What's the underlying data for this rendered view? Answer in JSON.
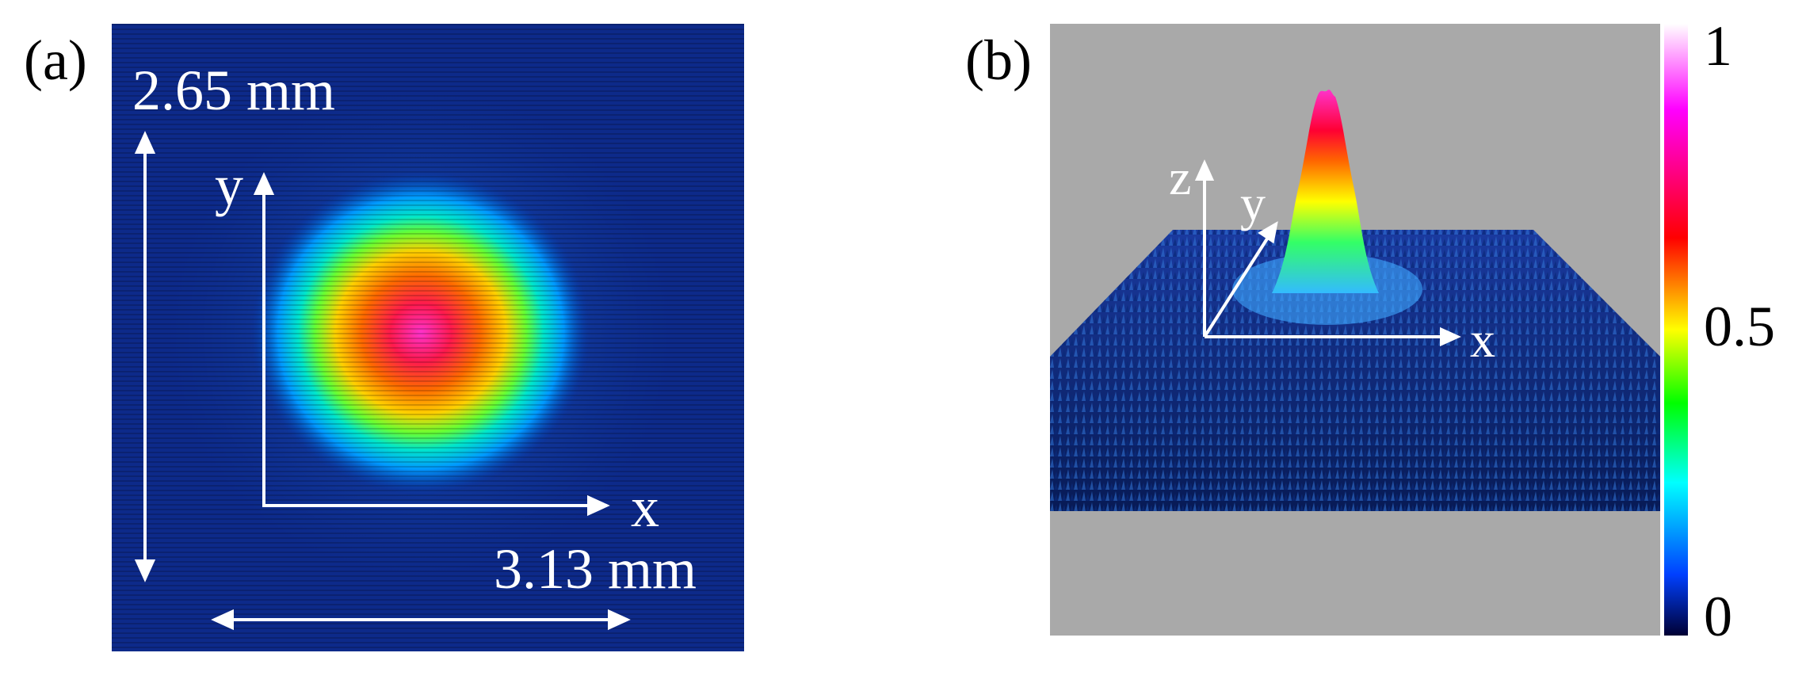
{
  "panel_a": {
    "label": "(a)",
    "height_label": "2.65 mm",
    "width_label": "3.13 mm",
    "axis_y_label": "y",
    "axis_x_label": "x"
  },
  "panel_b": {
    "label": "(b)",
    "axis_z_label": "z",
    "axis_y_label": "y",
    "axis_x_label": "x",
    "background_color": "#a9a9a9"
  },
  "colorbar": {
    "ticks": [
      "1",
      "0.5",
      "0"
    ],
    "colors": [
      "#ffffff",
      "#ff00ff",
      "#ff0000",
      "#ffff00",
      "#00ff00",
      "#00ffff",
      "#0000ff",
      "#000033"
    ]
  }
}
